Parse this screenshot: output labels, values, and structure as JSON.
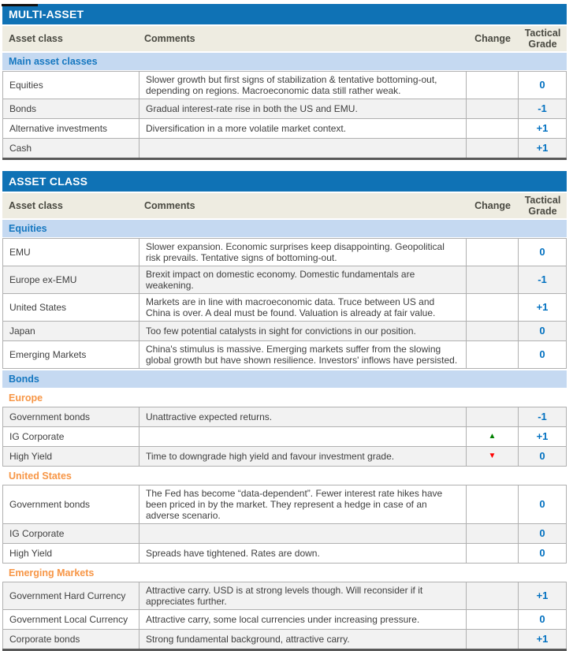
{
  "colors": {
    "title_bar_bg": "#0F72B5",
    "title_text": "#FFFFFF",
    "header_row_bg": "#EEECE1",
    "header_text": "#494941",
    "section_bg": "#C5D9F1",
    "section_text": "#1577C0",
    "subsection_text": "#F79646",
    "grade_text": "#0070C0",
    "alt_row_bg": "#F2F2F2",
    "up_arrow": "#008000",
    "down_arrow": "#FF0000"
  },
  "tables": [
    {
      "title": "MULTI-ASSET",
      "headers": {
        "asset_class": "Asset class",
        "comments": "Comments",
        "change": "Change",
        "tactical_grade": "Tactical Grade"
      },
      "sections": [
        {
          "label": "Main asset classes",
          "rows": [
            {
              "name": "Equities",
              "comment": "Slower growth but first signs of stabilization & tentative bottoming-out, depending on regions. Macroeconomic data still rather weak.",
              "grade": "0"
            },
            {
              "name": "Bonds",
              "comment": "Gradual interest-rate rise in both the US and EMU.",
              "grade": "-1"
            },
            {
              "name": "Alternative investments",
              "comment": "Diversification in a more volatile market context.",
              "grade": "+1"
            },
            {
              "name": "Cash",
              "comment": "",
              "grade": "+1"
            }
          ]
        }
      ]
    },
    {
      "title": "ASSET CLASS",
      "headers": {
        "asset_class": "Asset class",
        "comments": "Comments",
        "change": "Change",
        "tactical_grade": "Tactical Grade"
      },
      "sections": [
        {
          "label": "Equities",
          "rows": [
            {
              "name": "EMU",
              "comment": "Slower expansion. Economic surprises keep disappointing. Geopolitical risk prevails. Tentative signs of bottoming-out.",
              "grade": "0"
            },
            {
              "name": "Europe ex-EMU",
              "comment": "Brexit impact on domestic economy. Domestic fundamentals are weakening.",
              "grade": "-1"
            },
            {
              "name": "United States",
              "comment": "Markets are in line with macroeconomic data. Truce between US and China is over. A deal must be found. Valuation is already at fair value.",
              "grade": "+1"
            },
            {
              "name": "Japan",
              "comment": "Too few potential catalysts in sight for convictions in our position.",
              "grade": "0"
            },
            {
              "name": "Emerging Markets",
              "comment": "China's stimulus is massive. Emerging markets suffer from the slowing global growth but have shown resilience. Investors' inflows have persisted.",
              "grade": "0"
            }
          ]
        },
        {
          "label": "Bonds",
          "subsections": [
            {
              "label": "Europe",
              "rows": [
                {
                  "name": "Government bonds",
                  "comment": "Unattractive expected returns.",
                  "grade": "-1"
                },
                {
                  "name": "IG Corporate",
                  "comment": "",
                  "change_glyph": "▲",
                  "change_color": "#008000",
                  "grade": "+1"
                },
                {
                  "name": "High Yield",
                  "comment": "Time to downgrade high yield and favour investment grade.",
                  "change_glyph": "▼",
                  "change_color": "#FF0000",
                  "grade": "0"
                }
              ]
            },
            {
              "label": "United States",
              "rows": [
                {
                  "name": "Government bonds",
                  "comment": "The Fed has become “data-dependent”. Fewer interest rate hikes have been priced in by the market. They represent a hedge in case of an adverse scenario.",
                  "grade": "0"
                },
                {
                  "name": "IG Corporate",
                  "comment": "",
                  "grade": "0"
                },
                {
                  "name": "High Yield",
                  "comment": "Spreads have tightened. Rates are down.",
                  "grade": "0"
                }
              ]
            },
            {
              "label": "Emerging Markets",
              "rows": [
                {
                  "name": "Government Hard Currency",
                  "comment": "Attractive carry. USD is at strong levels though. Will reconsider if it appreciates further.",
                  "grade": "+1"
                },
                {
                  "name": "Government Local Currency",
                  "comment": "Attractive carry, some local currencies under increasing pressure.",
                  "grade": "0"
                },
                {
                  "name": "Corporate bonds",
                  "comment": "Strong fundamental background, attractive carry.",
                  "grade": "+1"
                }
              ]
            }
          ]
        }
      ]
    }
  ]
}
